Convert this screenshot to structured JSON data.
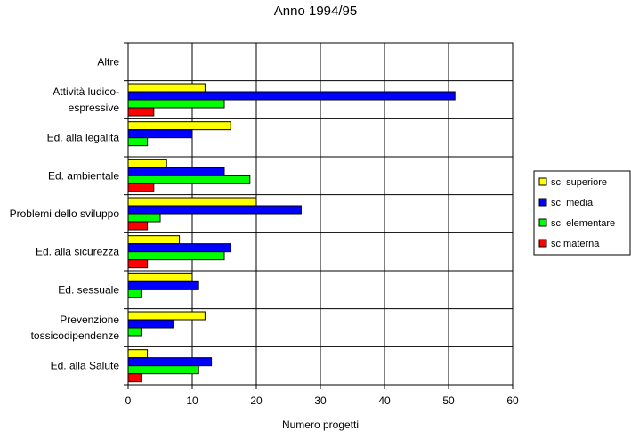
{
  "chart_data": {
    "type": "bar",
    "orientation": "horizontal",
    "title": "Anno 1994/95",
    "xlabel": "Numero progetti",
    "ylabel": "",
    "xlim": [
      0,
      60
    ],
    "x_ticks": [
      0,
      10,
      20,
      30,
      40,
      50,
      60
    ],
    "grid": true,
    "legend_position": "right",
    "categories": [
      "Altre",
      "Attività ludico-\nespressive",
      "Ed. alla legalità",
      "Ed. ambientale",
      "Problemi dello sviluppo",
      "Ed. alla sicurezza",
      "Ed. sessuale",
      "Prevenzione\ntossicodipendenze",
      "Ed. alla Salute"
    ],
    "series": [
      {
        "name": "sc. superiore",
        "color": "#ffff00",
        "values": [
          0,
          12,
          16,
          6,
          20,
          8,
          10,
          12,
          3
        ]
      },
      {
        "name": "sc. media",
        "color": "#0000ff",
        "values": [
          0,
          51,
          10,
          15,
          27,
          16,
          11,
          7,
          13
        ]
      },
      {
        "name": "sc. elementare",
        "color": "#00ff00",
        "values": [
          0,
          15,
          3,
          19,
          5,
          15,
          2,
          2,
          11
        ]
      },
      {
        "name": "sc.materna",
        "color": "#ff0000",
        "values": [
          0,
          4,
          0,
          4,
          3,
          3,
          0,
          0,
          2
        ]
      }
    ]
  }
}
